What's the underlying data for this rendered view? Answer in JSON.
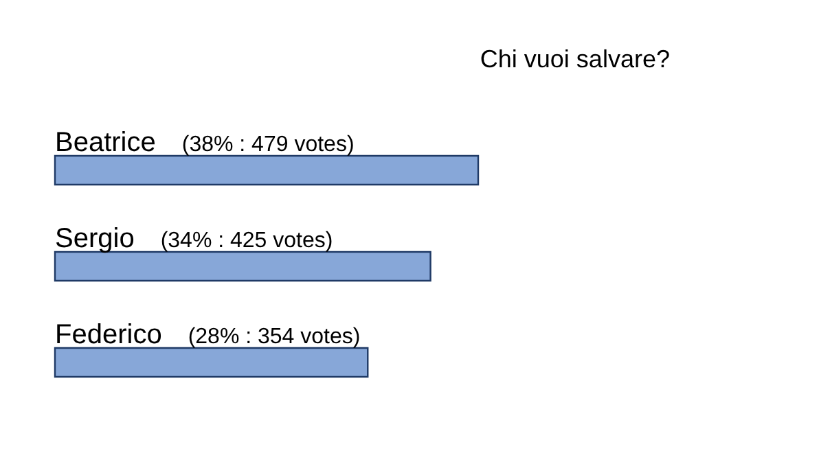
{
  "chart_data": {
    "type": "bar",
    "orientation": "horizontal",
    "title": "Chi vuoi salvare?",
    "categories": [
      "Beatrice",
      "Sergio",
      "Federico"
    ],
    "series": [
      {
        "color": "#87a7d8",
        "values": [
          479,
          425,
          354
        ],
        "value_labels": [
          "(38% : 479 votes)",
          "(34% : 425 votes)",
          "(28% : 354 votes)"
        ]
      }
    ]
  }
}
